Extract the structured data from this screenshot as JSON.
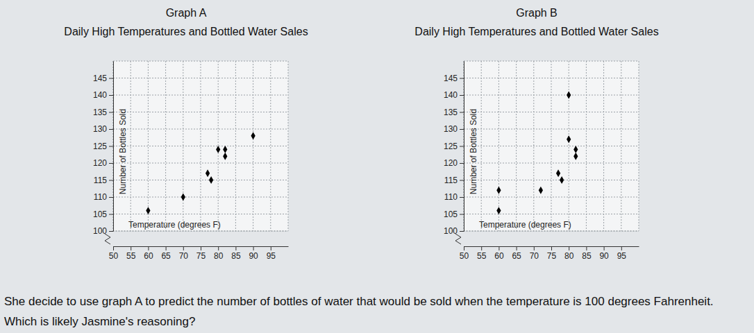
{
  "chart_data": [
    {
      "type": "scatter",
      "title": "Graph A",
      "subtitle": "Daily High Temperatures and Bottled Water Sales",
      "x_label": "Temperature (degrees F)",
      "y_label": "Number of Bottles Sold",
      "x": [
        60,
        70,
        77,
        78,
        80,
        82,
        82,
        90
      ],
      "values": [
        106,
        110,
        117,
        115,
        124,
        124,
        122,
        128
      ],
      "color": "#000000",
      "marker": "diamond",
      "grid": true,
      "xlim": [
        50,
        100
      ],
      "xticks": [
        50,
        55,
        60,
        65,
        70,
        75,
        80,
        85,
        90,
        95
      ],
      "ylim": [
        100,
        150
      ],
      "yticks": [
        100,
        105,
        110,
        115,
        120,
        125,
        130,
        135,
        140,
        145
      ]
    },
    {
      "type": "scatter",
      "title": "Graph B",
      "subtitle": "Daily High Temperatures and Bottled Water Sales",
      "x_label": "Temperature (degrees F)",
      "y_label": "Number of Bottles Sold",
      "x": [
        60,
        60,
        72,
        77,
        78,
        80,
        82,
        82,
        80
      ],
      "values": [
        106,
        112,
        112,
        117,
        115,
        127,
        124,
        122,
        140
      ],
      "color": "#000000",
      "marker": "diamond",
      "grid": true,
      "xlim": [
        50,
        100
      ],
      "xticks": [
        50,
        55,
        60,
        65,
        70,
        75,
        80,
        85,
        90,
        95
      ],
      "ylim": [
        100,
        150
      ],
      "yticks": [
        100,
        105,
        110,
        115,
        120,
        125,
        130,
        135,
        140,
        145
      ]
    }
  ],
  "question": "She decide to use graph A to predict the number of bottles of water that would be sold when the temperature is 100 degrees Fahrenheit. Which is likely Jasmine's reasoning?"
}
